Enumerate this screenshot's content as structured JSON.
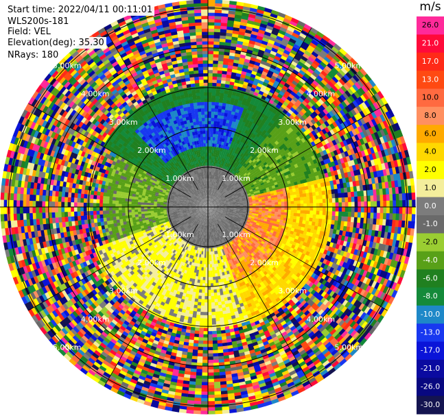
{
  "info": {
    "start_time": "Start time: 2022/04/11 00:11:01",
    "station": "WLS200s-181",
    "field": "Field: VEL",
    "elevation": "Elevation(deg): 35.30",
    "nrays": "NRays: 180"
  },
  "chart_data": {
    "type": "heatmap",
    "projection": "polar (PPI scan)",
    "field": "VEL",
    "range_rings": [
      {
        "value": 1.0,
        "label": "1.00km"
      },
      {
        "value": 2.0,
        "label": "2.00km"
      },
      {
        "value": 3.0,
        "label": "3.00km"
      },
      {
        "value": 4.0,
        "label": "4.00km"
      },
      {
        "value": 5.0,
        "label": "5.00km"
      }
    ],
    "max_range_km": 5.2,
    "azimuth_spokes_deg": [
      0,
      30,
      60,
      90,
      120,
      150,
      180,
      210,
      240,
      270,
      300,
      330
    ],
    "colorbar": {
      "unit": "m/s",
      "ticks": [
        "26.0",
        "21.0",
        "17.0",
        "13.0",
        "10.0",
        "8.0",
        "6.0",
        "4.0",
        "2.0",
        "1.0",
        "0.0",
        "-1.0",
        "-2.0",
        "-4.0",
        "-6.0",
        "-8.0",
        "-10.0",
        "-13.0",
        "-17.0",
        "-21.0",
        "-26.0",
        "-30.0"
      ],
      "colors": [
        "#ff2a9a",
        "#ff0a3a",
        "#ff2a18",
        "#ff4a12",
        "#ff6a40",
        "#ff9060",
        "#ffaa00",
        "#ffd800",
        "#ffff00",
        "#f4ee9c",
        "#7c7c7c",
        "#6a6a6a",
        "#9acd32",
        "#58a018",
        "#208020",
        "#148a3a",
        "#1e88c8",
        "#1838f0",
        "#0a14d8",
        "#0a0aa0",
        "#080880",
        "#141450"
      ]
    },
    "velocity_regions": [
      {
        "sector": "north / north-west",
        "range_km": [
          1.0,
          3.0
        ],
        "value_ms": -6.0
      },
      {
        "sector": "north (core)",
        "range_km": [
          1.5,
          2.6
        ],
        "value_ms": -11.0
      },
      {
        "sector": "north-east",
        "range_km": [
          1.0,
          3.0
        ],
        "value_ms": -3.0
      },
      {
        "sector": "east / south-east",
        "range_km": [
          0.6,
          3.1
        ],
        "value_ms": 5.0
      },
      {
        "sector": "south-east (core)",
        "range_km": [
          0.6,
          2.0
        ],
        "value_ms": 9.0
      },
      {
        "sector": "south",
        "range_km": [
          0.8,
          3.0
        ],
        "value_ms": 2.0
      },
      {
        "sector": "west",
        "range_km": [
          1.0,
          2.6
        ],
        "value_ms": -2.0
      },
      {
        "sector": "near field",
        "range_km": [
          0.0,
          1.0
        ],
        "value_ms": 0.0
      },
      {
        "sector": "all azimuths (noise)",
        "range_km": [
          3.0,
          5.2
        ],
        "value_ms": null
      }
    ]
  }
}
